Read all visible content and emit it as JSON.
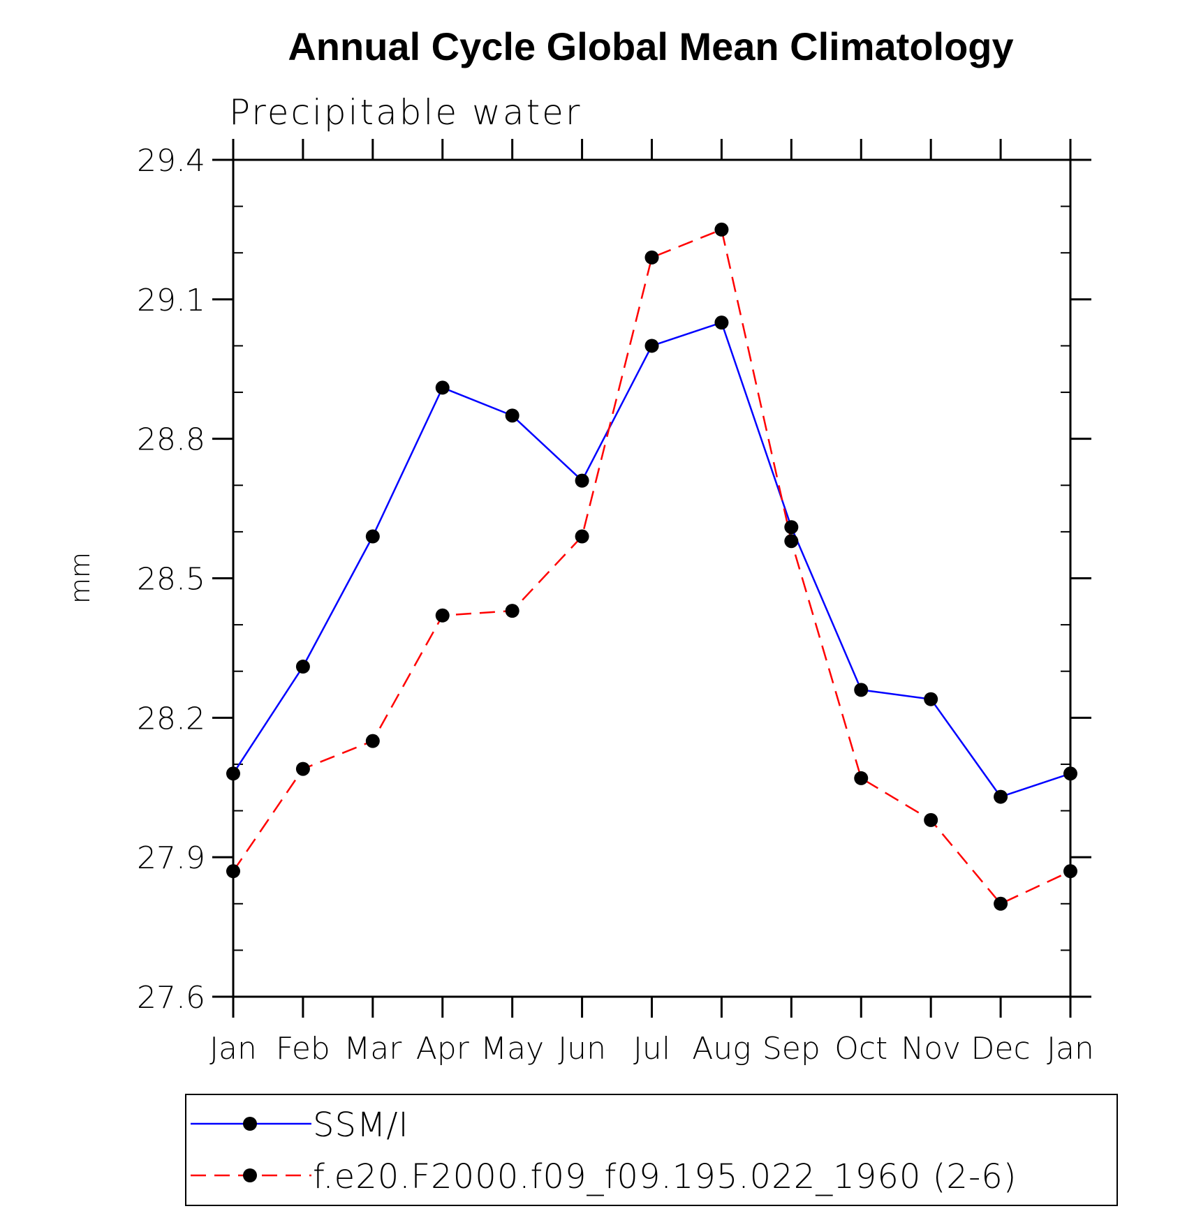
{
  "chart_data": {
    "type": "line",
    "title": "Annual Cycle Global Mean Climatology",
    "subtitle": "Precipitable water",
    "xlabel": "",
    "ylabel": "mm",
    "categories": [
      "Jan",
      "Feb",
      "Mar",
      "Apr",
      "May",
      "Jun",
      "Jul",
      "Aug",
      "Sep",
      "Oct",
      "Nov",
      "Dec",
      "Jan"
    ],
    "ylim": [
      27.6,
      29.4
    ],
    "yticks": [
      27.6,
      27.9,
      28.2,
      28.5,
      28.8,
      29.1,
      29.4
    ],
    "ytick_labels": [
      "27.6",
      "27.9",
      "28.2",
      "28.5",
      "28.8",
      "29.1",
      "29.4"
    ],
    "grid": false,
    "legend_position": "bottom",
    "series": [
      {
        "name": "SSM/I",
        "color": "#0000ff",
        "dash": "solid",
        "values": [
          28.08,
          28.31,
          28.59,
          28.91,
          28.85,
          28.71,
          29.0,
          29.05,
          28.61,
          28.26,
          28.24,
          28.03,
          28.08
        ]
      },
      {
        "name": "f.e20.F2000.f09_f09.195.022_1960 (2-6)",
        "color": "#ff0000",
        "dash": "dashed",
        "values": [
          27.87,
          28.09,
          28.15,
          28.42,
          28.43,
          28.59,
          29.19,
          29.25,
          28.58,
          28.07,
          27.98,
          27.8,
          27.87
        ]
      }
    ]
  }
}
